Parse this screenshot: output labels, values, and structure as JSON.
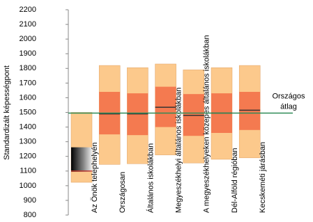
{
  "chart_data": {
    "type": "range",
    "y_label": "Standardizált képességpont",
    "categories": [
      "Az Önök telephelyén",
      "Országosan",
      "Általános iskolákban",
      "Megyeszékhelyi általános iskolákban",
      "A megyeszékhelyeken közepes általános iskolákban",
      "Dél-Alföld régióban",
      "Kecskeméti járásban"
    ],
    "low": [
      1023,
      1145,
      1150,
      1210,
      1155,
      1180,
      1190
    ],
    "q1": [
      1095,
      1350,
      1345,
      1400,
      1340,
      1360,
      1380
    ],
    "median": [
      1100,
      1490,
      1490,
      1535,
      1480,
      1495,
      1515
    ],
    "q3": [
      1262,
      1640,
      1630,
      1675,
      1625,
      1630,
      1640
    ],
    "high": [
      1500,
      1820,
      1805,
      1830,
      1790,
      1805,
      1820
    ],
    "outer_color": "#fcc98c",
    "inner_colors": [
      "#222222",
      "#f47a50",
      "#f47a50",
      "#f47a50",
      "#f47a50",
      "#f47a50",
      "#f47a50"
    ],
    "median_color": "#c0392b",
    "average": 1495,
    "average_color": "#2e8b57",
    "average_label_lines": [
      "Országos",
      "átlag"
    ],
    "ylim": [
      800,
      2200
    ],
    "yticks": [
      800,
      900,
      1000,
      1100,
      1200,
      1300,
      1400,
      1500,
      1600,
      1700,
      1800,
      1900,
      2000,
      2100,
      2200
    ]
  }
}
